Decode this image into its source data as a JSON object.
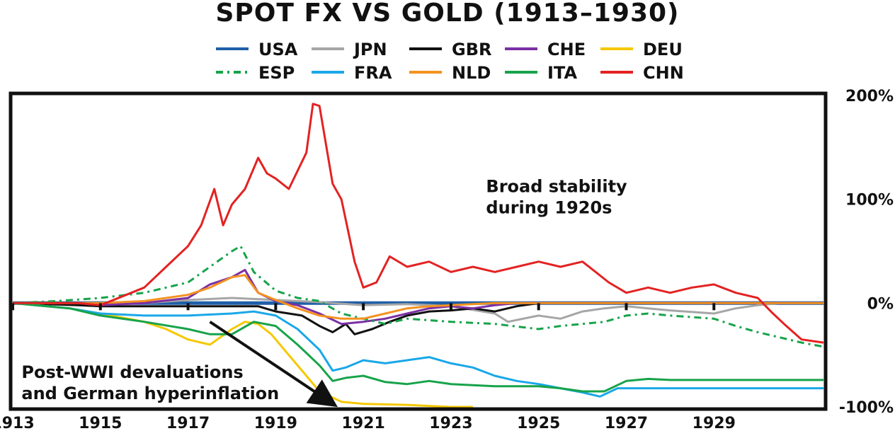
{
  "chart_data": {
    "type": "line",
    "title": "SPOT FX VS GOLD  (1913–1930)",
    "xlabel": "",
    "ylabel": "",
    "xlim": [
      1913,
      1931.5
    ],
    "ylim": [
      -100,
      200
    ],
    "x_ticks": [
      1913,
      1915,
      1917,
      1919,
      1921,
      1923,
      1925,
      1927,
      1929
    ],
    "x_tick_labels": [
      "1913",
      "1915",
      "1917",
      "1919",
      "1921",
      "1923",
      "1925",
      "1927",
      "1929"
    ],
    "y_ticks": [
      200,
      100,
      0,
      -100
    ],
    "y_tick_labels": [
      "200%",
      "100%",
      "0%",
      "-100%"
    ],
    "legend_position": "top",
    "annotations": [
      {
        "lines": [
          "Broad stability",
          "during 1920s"
        ],
        "x": 1923.8,
        "y": 107
      },
      {
        "lines": [
          "Post-WWI devaluations",
          "and German hyperinflation"
        ],
        "x": 1913.2,
        "y": -72,
        "arrow_from": [
          1917.5,
          -18
        ],
        "arrow_to": [
          1920.2,
          -94
        ]
      }
    ],
    "series": [
      {
        "name": "USA",
        "color": "#1f5fa8",
        "dash": "",
        "points": [
          [
            1913,
            0
          ],
          [
            1931.5,
            0
          ]
        ]
      },
      {
        "name": "JPN",
        "color": "#a6a6a6",
        "dash": "",
        "points": [
          [
            1913,
            0
          ],
          [
            1916,
            0
          ],
          [
            1917,
            3
          ],
          [
            1918,
            5
          ],
          [
            1919,
            3
          ],
          [
            1920,
            1
          ],
          [
            1921,
            -2
          ],
          [
            1922,
            -1
          ],
          [
            1923,
            -3
          ],
          [
            1924,
            -10
          ],
          [
            1924.3,
            -18
          ],
          [
            1925,
            -12
          ],
          [
            1925.5,
            -15
          ],
          [
            1926,
            -8
          ],
          [
            1926.5,
            -5
          ],
          [
            1927,
            -3
          ],
          [
            1927.5,
            -5
          ],
          [
            1928,
            -7
          ],
          [
            1929,
            -10
          ],
          [
            1929.5,
            -5
          ],
          [
            1930,
            -2
          ],
          [
            1930.5,
            0
          ],
          [
            1931.5,
            0
          ]
        ]
      },
      {
        "name": "GBR",
        "color": "#111111",
        "dash": "",
        "points": [
          [
            1913,
            0
          ],
          [
            1914.5,
            -2
          ],
          [
            1915,
            -3
          ],
          [
            1916,
            -3
          ],
          [
            1917,
            -3
          ],
          [
            1918,
            -3
          ],
          [
            1918.6,
            -3
          ],
          [
            1919,
            -8
          ],
          [
            1919.6,
            -12
          ],
          [
            1920,
            -22
          ],
          [
            1920.3,
            -28
          ],
          [
            1920.6,
            -20
          ],
          [
            1920.8,
            -30
          ],
          [
            1921.2,
            -25
          ],
          [
            1921.6,
            -18
          ],
          [
            1922,
            -12
          ],
          [
            1922.5,
            -8
          ],
          [
            1923,
            -7
          ],
          [
            1923.5,
            -5
          ],
          [
            1924,
            -8
          ],
          [
            1924.5,
            -3
          ],
          [
            1925,
            0
          ],
          [
            1931.5,
            0
          ]
        ]
      },
      {
        "name": "CHE",
        "color": "#7b2fa3",
        "dash": "",
        "points": [
          [
            1913,
            0
          ],
          [
            1914.5,
            0
          ],
          [
            1915,
            -2
          ],
          [
            1916,
            0
          ],
          [
            1917,
            5
          ],
          [
            1917.5,
            18
          ],
          [
            1918,
            25
          ],
          [
            1918.3,
            32
          ],
          [
            1918.6,
            10
          ],
          [
            1919,
            2
          ],
          [
            1919.5,
            -2
          ],
          [
            1920,
            -10
          ],
          [
            1920.5,
            -20
          ],
          [
            1921,
            -18
          ],
          [
            1921.5,
            -15
          ],
          [
            1922,
            -10
          ],
          [
            1922.5,
            -5
          ],
          [
            1923,
            -3
          ],
          [
            1923.5,
            -5
          ],
          [
            1924,
            -2
          ],
          [
            1924.5,
            0
          ],
          [
            1931.5,
            0
          ]
        ]
      },
      {
        "name": "DEU",
        "color": "#f5c800",
        "dash": "",
        "points": [
          [
            1913,
            0
          ],
          [
            1914.3,
            -5
          ],
          [
            1915,
            -10
          ],
          [
            1916,
            -18
          ],
          [
            1916.5,
            -25
          ],
          [
            1917,
            -35
          ],
          [
            1917.5,
            -40
          ],
          [
            1918,
            -25
          ],
          [
            1918.3,
            -18
          ],
          [
            1918.6,
            -20
          ],
          [
            1918.9,
            -30
          ],
          [
            1919.3,
            -50
          ],
          [
            1919.7,
            -70
          ],
          [
            1920,
            -85
          ],
          [
            1920.5,
            -95
          ],
          [
            1921,
            -97
          ],
          [
            1922,
            -98
          ],
          [
            1923,
            -100
          ],
          [
            1923.5,
            -100
          ]
        ]
      },
      {
        "name": "ESP",
        "color": "#17a34a",
        "dash": "10,6,3,6",
        "points": [
          [
            1913,
            0
          ],
          [
            1914,
            2
          ],
          [
            1915,
            5
          ],
          [
            1916,
            10
          ],
          [
            1917,
            20
          ],
          [
            1917.5,
            35
          ],
          [
            1918,
            50
          ],
          [
            1918.2,
            55
          ],
          [
            1918.5,
            30
          ],
          [
            1919,
            12
          ],
          [
            1919.5,
            5
          ],
          [
            1920,
            2
          ],
          [
            1920.5,
            -10
          ],
          [
            1921,
            -15
          ],
          [
            1921.5,
            -20
          ],
          [
            1922,
            -15
          ],
          [
            1923,
            -18
          ],
          [
            1924,
            -20
          ],
          [
            1925,
            -25
          ],
          [
            1925.5,
            -22
          ],
          [
            1926,
            -20
          ],
          [
            1926.5,
            -18
          ],
          [
            1927,
            -12
          ],
          [
            1927.5,
            -10
          ],
          [
            1928,
            -12
          ],
          [
            1929,
            -15
          ],
          [
            1929.5,
            -22
          ],
          [
            1930,
            -28
          ],
          [
            1930.5,
            -33
          ],
          [
            1931,
            -38
          ],
          [
            1931.5,
            -42
          ]
        ]
      },
      {
        "name": "FRA",
        "color": "#1aa7e8",
        "dash": "",
        "points": [
          [
            1913,
            0
          ],
          [
            1914.3,
            -5
          ],
          [
            1915,
            -10
          ],
          [
            1916,
            -12
          ],
          [
            1917,
            -12
          ],
          [
            1918,
            -10
          ],
          [
            1918.5,
            -8
          ],
          [
            1919,
            -12
          ],
          [
            1919.5,
            -25
          ],
          [
            1920,
            -45
          ],
          [
            1920.3,
            -65
          ],
          [
            1920.6,
            -62
          ],
          [
            1921,
            -55
          ],
          [
            1921.5,
            -58
          ],
          [
            1922,
            -55
          ],
          [
            1922.5,
            -52
          ],
          [
            1923,
            -58
          ],
          [
            1923.5,
            -62
          ],
          [
            1924,
            -70
          ],
          [
            1924.5,
            -75
          ],
          [
            1925,
            -78
          ],
          [
            1925.5,
            -82
          ],
          [
            1926,
            -86
          ],
          [
            1926.4,
            -90
          ],
          [
            1926.8,
            -82
          ],
          [
            1927,
            -82
          ],
          [
            1928,
            -82
          ],
          [
            1931.5,
            -82
          ]
        ]
      },
      {
        "name": "NLD",
        "color": "#f39220",
        "dash": "",
        "points": [
          [
            1913,
            0
          ],
          [
            1914.5,
            0
          ],
          [
            1915,
            0
          ],
          [
            1916,
            2
          ],
          [
            1917,
            8
          ],
          [
            1917.5,
            15
          ],
          [
            1918,
            25
          ],
          [
            1918.3,
            27
          ],
          [
            1918.6,
            10
          ],
          [
            1919,
            3
          ],
          [
            1919.5,
            -5
          ],
          [
            1920,
            -12
          ],
          [
            1920.5,
            -15
          ],
          [
            1921,
            -15
          ],
          [
            1921.5,
            -10
          ],
          [
            1922,
            -5
          ],
          [
            1922.5,
            -3
          ],
          [
            1923,
            -2
          ],
          [
            1924,
            0
          ],
          [
            1931.5,
            0
          ]
        ]
      },
      {
        "name": "ITA",
        "color": "#17a34a",
        "dash": "",
        "points": [
          [
            1913,
            0
          ],
          [
            1914.3,
            -5
          ],
          [
            1915,
            -12
          ],
          [
            1916,
            -18
          ],
          [
            1917,
            -25
          ],
          [
            1917.5,
            -30
          ],
          [
            1918,
            -30
          ],
          [
            1918.5,
            -18
          ],
          [
            1919,
            -22
          ],
          [
            1919.5,
            -40
          ],
          [
            1920,
            -60
          ],
          [
            1920.3,
            -75
          ],
          [
            1920.6,
            -72
          ],
          [
            1921,
            -70
          ],
          [
            1921.5,
            -76
          ],
          [
            1922,
            -78
          ],
          [
            1922.5,
            -75
          ],
          [
            1923,
            -78
          ],
          [
            1924,
            -80
          ],
          [
            1925,
            -80
          ],
          [
            1925.5,
            -82
          ],
          [
            1926,
            -85
          ],
          [
            1926.5,
            -85
          ],
          [
            1927,
            -75
          ],
          [
            1927.5,
            -73
          ],
          [
            1928,
            -74
          ],
          [
            1929,
            -74
          ],
          [
            1931.5,
            -74
          ]
        ]
      },
      {
        "name": "CHN",
        "color": "#e32222",
        "dash": "",
        "points": [
          [
            1913,
            0
          ],
          [
            1914.5,
            0
          ],
          [
            1915,
            -2
          ],
          [
            1916,
            15
          ],
          [
            1916.5,
            35
          ],
          [
            1917,
            55
          ],
          [
            1917.3,
            75
          ],
          [
            1917.6,
            110
          ],
          [
            1917.8,
            75
          ],
          [
            1918,
            95
          ],
          [
            1918.3,
            110
          ],
          [
            1918.6,
            140
          ],
          [
            1918.8,
            125
          ],
          [
            1919,
            120
          ],
          [
            1919.3,
            110
          ],
          [
            1919.7,
            145
          ],
          [
            1919.85,
            192
          ],
          [
            1920,
            190
          ],
          [
            1920.3,
            115
          ],
          [
            1920.5,
            100
          ],
          [
            1920.8,
            40
          ],
          [
            1921,
            15
          ],
          [
            1921.3,
            20
          ],
          [
            1921.6,
            45
          ],
          [
            1922,
            35
          ],
          [
            1922.5,
            40
          ],
          [
            1923,
            30
          ],
          [
            1923.5,
            35
          ],
          [
            1924,
            30
          ],
          [
            1924.5,
            35
          ],
          [
            1925,
            40
          ],
          [
            1925.5,
            35
          ],
          [
            1926,
            40
          ],
          [
            1926.3,
            30
          ],
          [
            1926.6,
            20
          ],
          [
            1927,
            10
          ],
          [
            1927.5,
            15
          ],
          [
            1928,
            10
          ],
          [
            1928.5,
            15
          ],
          [
            1929,
            18
          ],
          [
            1929.5,
            10
          ],
          [
            1930,
            5
          ],
          [
            1930.3,
            -8
          ],
          [
            1930.6,
            -20
          ],
          [
            1931,
            -35
          ],
          [
            1931.5,
            -38
          ]
        ]
      }
    ]
  }
}
